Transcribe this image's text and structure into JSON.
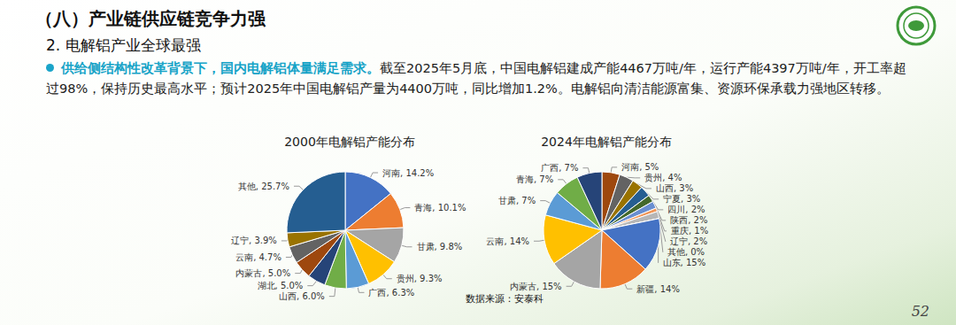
{
  "header": {
    "title": "（八）产业链供应链竞争力强",
    "subtitle": "2. 电解铝产业全球最强",
    "page_number": "52"
  },
  "bullet": {
    "highlight": "供给侧结构性改革背景下，国内电解铝体量满足需求。",
    "text": "截至2025年5月底，中国电解铝建成产能4467万吨/年，运行产能4397万吨/年，开工率超过98%，保持历史最高水平；预计2025年中国电解铝产量为4400万吨，同比增加1.2%。电解铝向清洁能源富集、资源环保承载力强地区转移。"
  },
  "source": "数据来源：安泰科",
  "chart_data": [
    {
      "type": "pie",
      "title": "2000年电解铝产能分布",
      "categories": [
        "河南",
        "青海",
        "甘肃",
        "贵州",
        "广西",
        "山西",
        "湖北",
        "内蒙古",
        "云南",
        "辽宁",
        "其他"
      ],
      "values": [
        14.2,
        10.1,
        9.8,
        9.3,
        6.3,
        6.0,
        5.0,
        5.0,
        4.7,
        3.9,
        25.7
      ],
      "value_labels": [
        "河南, 14.2%",
        "青海, 10.1%",
        "甘肃, 9.8%",
        "贵州, 9.3%",
        "广西, 6.3%",
        "山西, 6.0%",
        "湖北, 5.0%",
        "内蒙古, 5.0%",
        "云南, 4.7%",
        "辽宁, 3.9%",
        "其他, 25.7%"
      ],
      "colors": [
        "#4472c4",
        "#ed7d31",
        "#a5a5a5",
        "#ffc000",
        "#5b9bd5",
        "#70ad47",
        "#264478",
        "#9e480e",
        "#636363",
        "#997300",
        "#255e91"
      ],
      "data_labels": true
    },
    {
      "type": "pie",
      "title": "2024年电解铝产能分布",
      "categories": [
        "河南",
        "贵州",
        "山西",
        "宁夏",
        "四川",
        "陕西",
        "重庆",
        "辽宁",
        "其他",
        "山东",
        "新疆",
        "内蒙古",
        "云南",
        "甘肃",
        "青海",
        "广西"
      ],
      "values": [
        5,
        4,
        3,
        3,
        2,
        2,
        1,
        2,
        0,
        15,
        14,
        15,
        14,
        7,
        7,
        7
      ],
      "value_labels": [
        "河南, 5%",
        "贵州, 4%",
        "山西, 3%",
        "宁夏, 3%",
        "四川, 2%",
        "陕西, 2%",
        "重庆, 1%",
        "辽宁, 2%",
        "其他, 0%",
        "山东, 15%",
        "新疆, 14%",
        "内蒙古, 15%",
        "云南, 14%",
        "甘肃, 7%",
        "青海, 7%",
        "广西, 7%"
      ],
      "colors": [
        "#9e480e",
        "#636363",
        "#997300",
        "#255e91",
        "#43682b",
        "#698ed0",
        "#f1975a",
        "#b7b7b7",
        "#ffcd33",
        "#4472c4",
        "#ed7d31",
        "#a5a5a5",
        "#ffc000",
        "#5b9bd5",
        "#70ad47",
        "#264478"
      ],
      "data_labels": true
    }
  ]
}
